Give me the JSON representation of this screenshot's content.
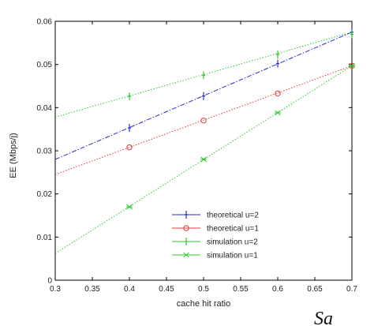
{
  "chart_data": {
    "type": "line",
    "xlabel": "cache hit ratio",
    "ylabel": "EE (Mbps/j)",
    "xlim": [
      0.3,
      0.7
    ],
    "ylim": [
      0,
      0.06
    ],
    "x_ticks": [
      "0.3",
      "0.35",
      "0.4",
      "0.45",
      "0.5",
      "0.55",
      "0.6",
      "0.65",
      "0.7"
    ],
    "y_ticks": [
      "0",
      "0.01",
      "0.02",
      "0.03",
      "0.04",
      "0.05",
      "0.06"
    ],
    "legend_position": "lower-right",
    "grid": false,
    "series": [
      {
        "name": "theoretical u=2",
        "color": "#2a2ad4",
        "line_style": "dash-dot",
        "marker": "plus",
        "x": [
          0.3,
          0.7
        ],
        "y": [
          0.028,
          0.0575
        ],
        "marker_x": [
          0.4,
          0.5,
          0.6,
          0.7
        ],
        "marker_y": [
          0.0353,
          0.0427,
          0.0502,
          0.0575
        ]
      },
      {
        "name": "theoretical u=1",
        "color": "#e23a3a",
        "line_style": "dotted",
        "marker": "circle",
        "x": [
          0.3,
          0.7
        ],
        "y": [
          0.0245,
          0.0497
        ],
        "marker_x": [
          0.4,
          0.5,
          0.6,
          0.7
        ],
        "marker_y": [
          0.0308,
          0.037,
          0.0433,
          0.0497
        ]
      },
      {
        "name": "simulation u=2",
        "color": "#2fc92f",
        "line_style": "dotted",
        "marker": "plus",
        "x": [
          0.3,
          0.7
        ],
        "y": [
          0.0378,
          0.0575
        ],
        "marker_x": [
          0.4,
          0.5,
          0.6,
          0.7
        ],
        "marker_y": [
          0.0426,
          0.0475,
          0.0523,
          0.057
        ]
      },
      {
        "name": "simulation u=1",
        "color": "#2fc92f",
        "line_style": "dotted",
        "marker": "star",
        "x": [
          0.3,
          0.7
        ],
        "y": [
          0.0062,
          0.0497
        ],
        "marker_x": [
          0.4,
          0.5,
          0.6,
          0.7
        ],
        "marker_y": [
          0.017,
          0.028,
          0.0388,
          0.0497
        ]
      }
    ]
  },
  "footer_text": "Sa"
}
